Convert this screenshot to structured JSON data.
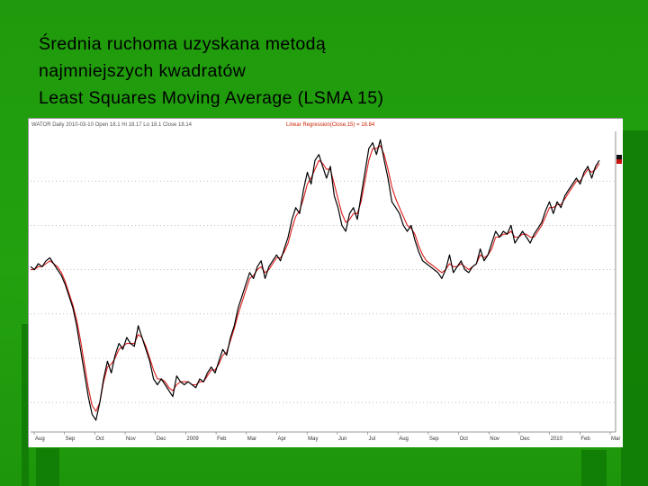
{
  "slide": {
    "title_line1": "Średnia ruchoma uzyskana metodą",
    "title_line2": "najmniejszych kwadratów",
    "title_line3": "Least Squares Moving Average (LSMA 15)"
  },
  "colors": {
    "background": "#22a00e",
    "price_line": "#000000",
    "lsma_line": "#dd1c1c",
    "grid": "#9a9a9a"
  },
  "chart_data": {
    "type": "line",
    "header_text": "WATOR  Daily 2010-03-10  Open 18.1  Hi 18.17  Lo 18.1  Close 18.14",
    "header_indicator": "Linear Regression(Close,15) = 18.84",
    "x_tick_labels": [
      "Aug",
      "Sep",
      "Oct",
      "Nov",
      "Dec",
      "2009",
      "Feb",
      "Mar",
      "Apr",
      "May",
      "Jun",
      "Jul",
      "Aug",
      "Sep",
      "Oct",
      "Nov",
      "Dec",
      "2010",
      "Feb",
      "Mar"
    ],
    "ylim": [
      0,
      100
    ],
    "grid": true,
    "series": [
      {
        "key": "price",
        "values": [
          56,
          55,
          57,
          56,
          58,
          59,
          57,
          55,
          53,
          50,
          46,
          42,
          36,
          28,
          20,
          12,
          6,
          4,
          10,
          18,
          24,
          20,
          26,
          30,
          28,
          32,
          30,
          29,
          36,
          32,
          28,
          24,
          18,
          16,
          18,
          16,
          14,
          12,
          19,
          17,
          16,
          17,
          16,
          15,
          18,
          17,
          20,
          22,
          20,
          24,
          28,
          26,
          32,
          36,
          42,
          46,
          50,
          54,
          52,
          56,
          58,
          52,
          56,
          58,
          60,
          58,
          62,
          66,
          72,
          76,
          74,
          82,
          88,
          84,
          92,
          94,
          90,
          86,
          90,
          80,
          76,
          70,
          68,
          74,
          76,
          72,
          80,
          88,
          96,
          98,
          94,
          99,
          92,
          86,
          78,
          76,
          74,
          70,
          68,
          70,
          65,
          61,
          58,
          57,
          56,
          55,
          54,
          52,
          55,
          60,
          54,
          56,
          58,
          55,
          54,
          56,
          57,
          62,
          58,
          60,
          64,
          68,
          66,
          68,
          67,
          70,
          64,
          66,
          68,
          66,
          64,
          67,
          69,
          71,
          75,
          78,
          74,
          78,
          76,
          80,
          82,
          84,
          86,
          84,
          88,
          90,
          86,
          90,
          92
        ]
      },
      {
        "key": "lsma",
        "values": [
          55,
          55,
          56,
          56,
          57,
          58,
          57,
          56,
          54,
          51,
          47,
          43,
          38,
          31,
          23,
          15,
          9,
          7,
          10,
          17,
          22,
          23,
          25,
          28,
          29,
          30,
          30,
          30,
          33,
          32,
          29,
          25,
          21,
          18,
          18,
          17,
          15,
          14,
          16,
          17,
          17,
          17,
          16,
          16,
          17,
          17,
          19,
          21,
          21,
          23,
          26,
          27,
          31,
          35,
          40,
          44,
          48,
          52,
          53,
          55,
          56,
          54,
          55,
          57,
          59,
          59,
          61,
          64,
          69,
          73,
          75,
          79,
          84,
          86,
          89,
          92,
          91,
          89,
          89,
          84,
          79,
          74,
          71,
          72,
          74,
          74,
          78,
          85,
          92,
          96,
          96,
          97,
          94,
          89,
          83,
          79,
          76,
          73,
          70,
          69,
          67,
          63,
          60,
          58,
          57,
          56,
          55,
          54,
          55,
          57,
          56,
          56,
          57,
          56,
          55,
          56,
          57,
          60,
          59,
          60,
          62,
          66,
          66,
          67,
          67,
          68,
          66,
          66,
          67,
          67,
          66,
          66,
          68,
          70,
          73,
          76,
          76,
          77,
          77,
          79,
          81,
          83,
          85,
          85,
          87,
          89,
          88,
          89,
          91
        ]
      }
    ]
  }
}
